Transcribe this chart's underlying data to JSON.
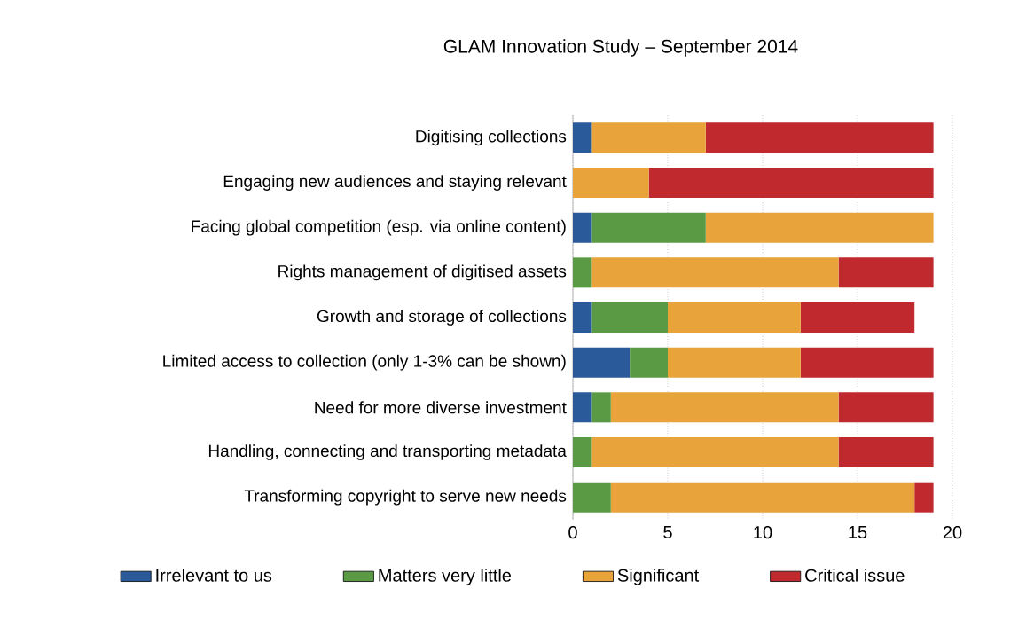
{
  "chart_data": {
    "type": "bar",
    "title": "GLAM Innovation Study – September 2014",
    "orientation": "horizontal",
    "stacked": true,
    "categories": [
      "Digitising collections",
      "Engaging new audiences and staying relevant",
      "Facing global competition (esp. via online content)",
      "Rights management of digitised assets",
      "Growth and storage of collections",
      "Limited access to collection (only 1-3% can be shown)",
      "Need for more diverse investment",
      "Handling, connecting and transporting metadata",
      "Transforming copyright to serve new needs"
    ],
    "series": [
      {
        "name": "Irrelevant to us",
        "color": "#2a5a9a",
        "values": [
          1,
          0,
          1,
          0,
          1,
          3,
          1,
          0,
          0
        ]
      },
      {
        "name": "Matters very little",
        "color": "#5b9a45",
        "values": [
          0,
          0,
          6,
          1,
          4,
          2,
          1,
          1,
          2
        ]
      },
      {
        "name": "Significant",
        "color": "#e8a33a",
        "values": [
          6,
          4,
          12,
          13,
          7,
          7,
          12,
          13,
          16
        ]
      },
      {
        "name": "Critical issue",
        "color": "#c0292e",
        "values": [
          12,
          15,
          0,
          5,
          6,
          7,
          5,
          5,
          1
        ]
      }
    ],
    "xlim": [
      0,
      20
    ],
    "xticks": [
      0,
      5,
      10,
      15,
      20
    ],
    "grid": "x",
    "legend": "bottom"
  }
}
